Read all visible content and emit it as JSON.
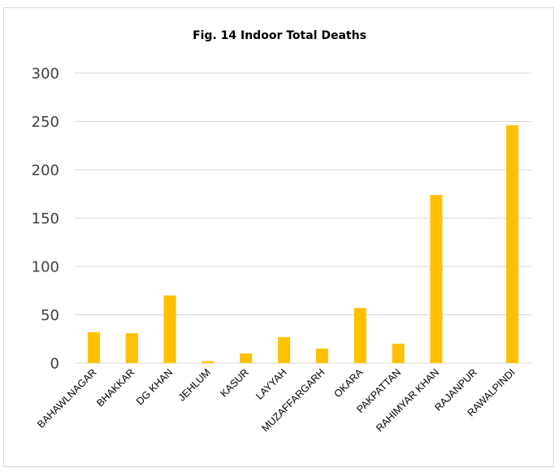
{
  "chart_data": {
    "type": "bar",
    "title": "Fig. 14 Indoor Total Deaths",
    "xlabel": "",
    "ylabel": "",
    "ylim": [
      0,
      300
    ],
    "yticks": [
      0,
      50,
      100,
      150,
      200,
      250,
      300
    ],
    "grid": true,
    "legend": "none",
    "categories": [
      "BAHAWLNAGAR",
      "BHAKKAR",
      "DG KHAN",
      "JEHLUM",
      "KASUR",
      "LAYYAH",
      "MUZAFFARGARH",
      "OKARA",
      "PAKPATTAN",
      "RAHIMYAR KHAN",
      "RAJANPUR",
      "RAWALPINDI"
    ],
    "values": [
      32,
      31,
      70,
      2,
      10,
      27,
      15,
      57,
      20,
      174,
      0,
      246
    ],
    "bar_color": "#ffc000",
    "grid_color": "#d9d9d9",
    "tick_color": "#404040"
  }
}
